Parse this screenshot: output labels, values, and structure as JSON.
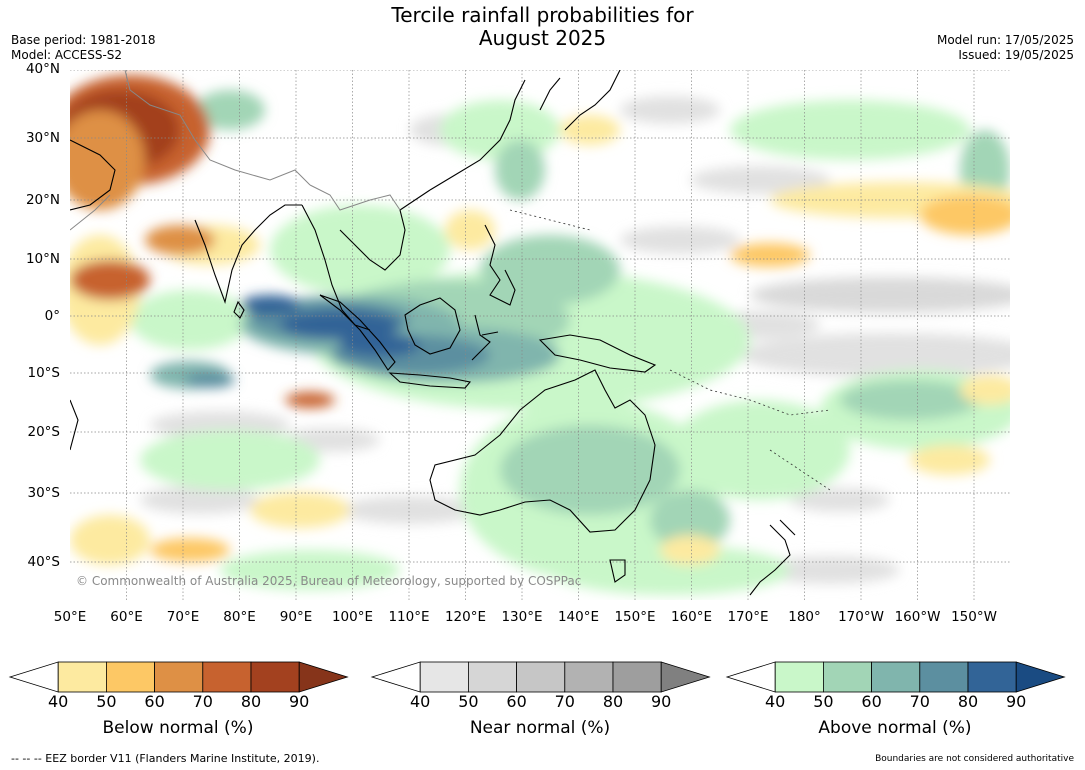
{
  "title_line1": "Tercile rainfall probabilities for",
  "title_line2": "August 2025",
  "meta": {
    "base_period": "Base period: 1981-2018",
    "model": "Model: ACCESS-S2",
    "model_run": "Model run: 17/05/2025",
    "issued": "Issued: 19/05/2025"
  },
  "copyright": "© Commonwealth of Australia 2025, Bureau of Meteorology, supported by COSPPac",
  "lat_labels": [
    "40°N",
    "30°N",
    "20°N",
    "10°N",
    "0°",
    "10°S",
    "20°S",
    "30°S",
    "40°S"
  ],
  "lon_labels": [
    "50°E",
    "60°E",
    "70°E",
    "80°E",
    "90°E",
    "100°E",
    "110°E",
    "120°E",
    "130°E",
    "140°E",
    "150°E",
    "160°E",
    "170°E",
    "180°",
    "170°W",
    "160°W",
    "150°W"
  ],
  "colorbars": [
    {
      "label": "Below normal (%)",
      "ticks": [
        "40",
        "50",
        "60",
        "70",
        "80",
        "90"
      ],
      "colors": [
        "#ffffff",
        "#fdeaa0",
        "#fdc865",
        "#de9045",
        "#c7622f",
        "#a3411f",
        "#86341a"
      ]
    },
    {
      "label": "Near normal (%)",
      "ticks": [
        "40",
        "50",
        "60",
        "70",
        "80",
        "90"
      ],
      "colors": [
        "#ffffff",
        "#e6e6e6",
        "#d6d6d6",
        "#c6c6c6",
        "#b2b2b2",
        "#9e9e9e",
        "#808080"
      ]
    },
    {
      "label": "Above normal (%)",
      "ticks": [
        "40",
        "50",
        "60",
        "70",
        "80",
        "90"
      ],
      "colors": [
        "#ffffff",
        "#c9f7c9",
        "#a2d5b6",
        "#80b5ad",
        "#5c8fa0",
        "#326497",
        "#1a4b82"
      ]
    }
  ],
  "footer_left": "--  --  -- EEZ border V11 (Flanders Marine Institute, 2019).",
  "footer_right": "Boundaries are not considered authoritative"
}
